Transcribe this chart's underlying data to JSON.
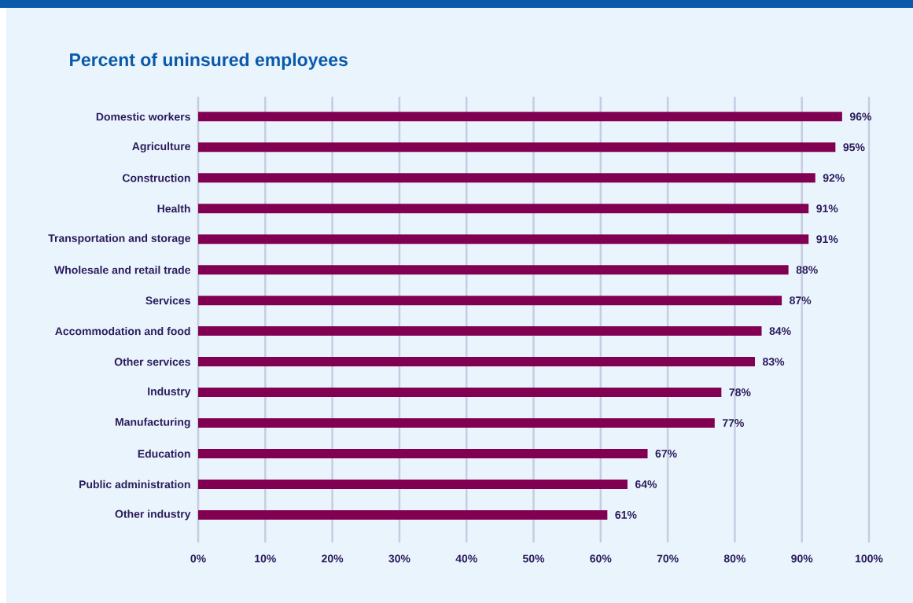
{
  "chart_data": {
    "type": "bar",
    "orientation": "horizontal",
    "title": "Percent of uninsured employees",
    "categories": [
      "Domestic workers",
      "Agriculture",
      "Construction",
      "Health",
      "Transportation and storage",
      "Wholesale and retail trade",
      "Services",
      "Accommodation and food",
      "Other services",
      "Industry",
      "Manufacturing",
      "Education",
      "Public administration",
      "Other industry"
    ],
    "values": [
      96,
      95,
      92,
      91,
      91,
      88,
      87,
      84,
      83,
      78,
      77,
      67,
      64,
      61
    ],
    "value_labels": [
      "96%",
      "95%",
      "92%",
      "91%",
      "91%",
      "88%",
      "87%",
      "84%",
      "83%",
      "78%",
      "77%",
      "67%",
      "64%",
      "61%"
    ],
    "color": "#820051",
    "xlim": [
      0,
      100
    ],
    "xticks": [
      {
        "value": 0,
        "label": "0%"
      },
      {
        "value": 10,
        "label": "10%"
      },
      {
        "value": 20,
        "label": "20%"
      },
      {
        "value": 30,
        "label": "30%"
      },
      {
        "value": 40,
        "label": "40%"
      },
      {
        "value": 50,
        "label": "50%"
      },
      {
        "value": 60,
        "label": "60%"
      },
      {
        "value": 70,
        "label": "70%"
      },
      {
        "value": 80,
        "label": "80%"
      },
      {
        "value": 90,
        "label": "90%"
      },
      {
        "value": 100,
        "label": "100%"
      }
    ],
    "grid": "x"
  }
}
